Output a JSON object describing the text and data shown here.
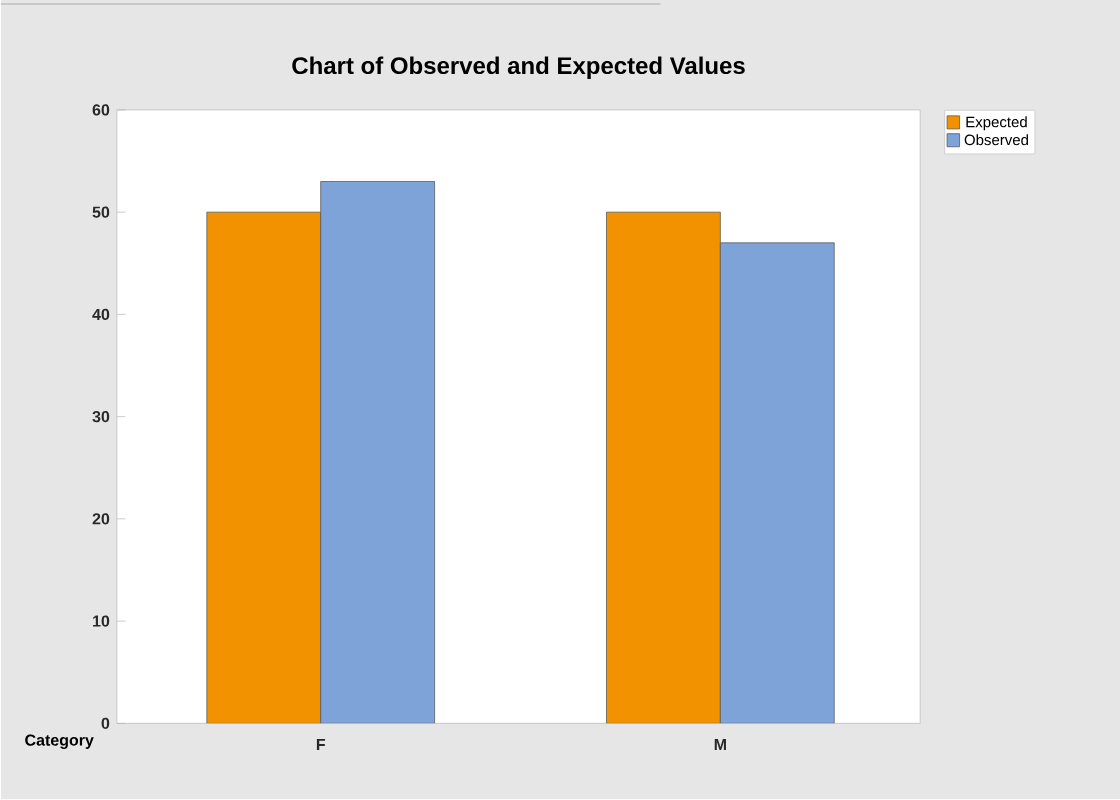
{
  "chart_data": {
    "type": "bar",
    "title": "Chart of Observed and Expected Values",
    "xlabel": "Category",
    "categories": [
      "F",
      "M"
    ],
    "series": [
      {
        "name": "Expected",
        "color": "#f39200",
        "values": [
          50,
          50
        ]
      },
      {
        "name": "Observed",
        "color": "#7ea3d9",
        "values": [
          53,
          47
        ]
      }
    ],
    "ylim": [
      0,
      60
    ],
    "yticks": [
      0,
      10,
      20,
      30,
      40,
      50,
      60
    ],
    "legend": "top right"
  }
}
